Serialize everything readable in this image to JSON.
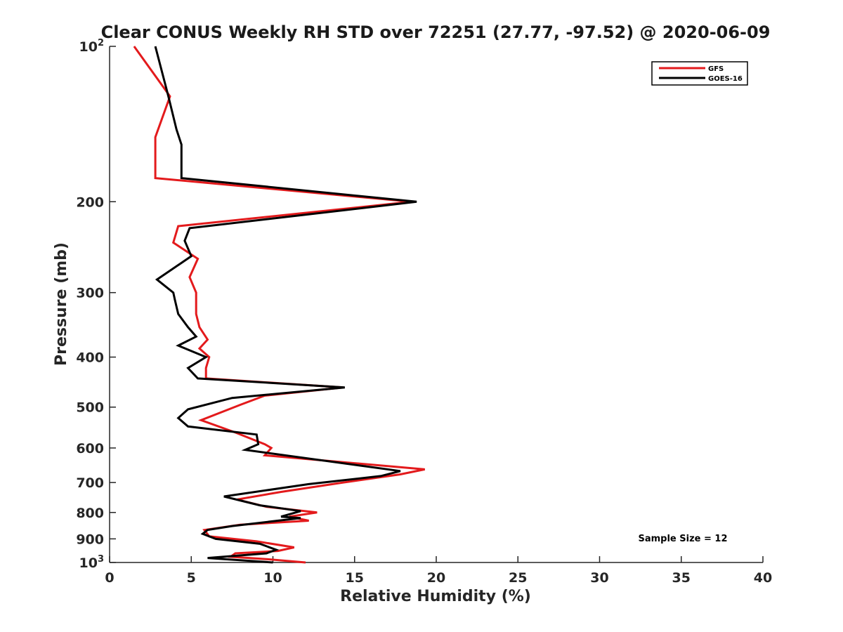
{
  "chart_data": {
    "type": "line",
    "title": "Clear CONUS Weekly RH STD over 72251 (27.77, -97.52) @ 2020-06-09",
    "xlabel": "Relative Humidity (%)",
    "ylabel": "Pressure (mb)",
    "xlim": [
      0,
      40
    ],
    "ylim": [
      100,
      1000
    ],
    "yscale": "log",
    "y_reversed": true,
    "grid": false,
    "legend_position": "top-right",
    "x_ticks": [
      "0",
      "5",
      "10",
      "15",
      "20",
      "25",
      "30",
      "35",
      "40"
    ],
    "y_ticks": [
      {
        "value": 100,
        "base": "10",
        "exp": "2"
      },
      {
        "value": 200,
        "label": "200"
      },
      {
        "value": 300,
        "label": "300"
      },
      {
        "value": 400,
        "label": "400"
      },
      {
        "value": 500,
        "label": "500"
      },
      {
        "value": 600,
        "label": "600"
      },
      {
        "value": 700,
        "label": "700"
      },
      {
        "value": 800,
        "label": "800"
      },
      {
        "value": 900,
        "label": "900"
      },
      {
        "value": 1000,
        "base": "10",
        "exp": "3"
      }
    ],
    "annotation": "Sample Size = 12",
    "series": [
      {
        "name": "GFS",
        "color": "#e31a1c",
        "points": [
          [
            1.5,
            100
          ],
          [
            3.7,
            125
          ],
          [
            2.8,
            150
          ],
          [
            2.8,
            180
          ],
          [
            18.5,
            200
          ],
          [
            4.2,
            223
          ],
          [
            3.9,
            240
          ],
          [
            5.4,
            258
          ],
          [
            4.9,
            280
          ],
          [
            5.3,
            300
          ],
          [
            5.3,
            330
          ],
          [
            5.5,
            350
          ],
          [
            6.0,
            370
          ],
          [
            5.5,
            385
          ],
          [
            6.1,
            400
          ],
          [
            5.9,
            420
          ],
          [
            5.9,
            440
          ],
          [
            14.3,
            458
          ],
          [
            9.5,
            475
          ],
          [
            8.0,
            495
          ],
          [
            5.6,
            530
          ],
          [
            7.7,
            560
          ],
          [
            9.5,
            590
          ],
          [
            9.9,
            600
          ],
          [
            9.5,
            620
          ],
          [
            19.3,
            660
          ],
          [
            17.8,
            675
          ],
          [
            14.3,
            700
          ],
          [
            10.5,
            730
          ],
          [
            7.8,
            755
          ],
          [
            9.6,
            780
          ],
          [
            12.7,
            800
          ],
          [
            11.0,
            815
          ],
          [
            12.2,
            830
          ],
          [
            8.0,
            845
          ],
          [
            5.8,
            865
          ],
          [
            6.1,
            890
          ],
          [
            9.0,
            910
          ],
          [
            11.3,
            935
          ],
          [
            10.3,
            950
          ],
          [
            7.7,
            960
          ],
          [
            7.4,
            975
          ],
          [
            9.6,
            985
          ],
          [
            12.0,
            1000
          ]
        ]
      },
      {
        "name": "GOES-16",
        "color": "#000000",
        "points": [
          [
            2.8,
            100
          ],
          [
            3.6,
            125
          ],
          [
            4.1,
            145
          ],
          [
            4.4,
            155
          ],
          [
            4.4,
            180
          ],
          [
            18.8,
            200
          ],
          [
            4.9,
            225
          ],
          [
            4.6,
            238
          ],
          [
            5.0,
            255
          ],
          [
            2.9,
            283
          ],
          [
            3.9,
            300
          ],
          [
            4.0,
            310
          ],
          [
            4.2,
            330
          ],
          [
            4.8,
            350
          ],
          [
            5.3,
            365
          ],
          [
            4.2,
            380
          ],
          [
            5.9,
            400
          ],
          [
            4.8,
            420
          ],
          [
            5.4,
            440
          ],
          [
            14.4,
            458
          ],
          [
            7.5,
            480
          ],
          [
            4.8,
            505
          ],
          [
            4.2,
            525
          ],
          [
            4.8,
            545
          ],
          [
            9.0,
            565
          ],
          [
            9.1,
            590
          ],
          [
            8.3,
            605
          ],
          [
            17.8,
            665
          ],
          [
            16.6,
            680
          ],
          [
            12.2,
            705
          ],
          [
            7.0,
            745
          ],
          [
            9.2,
            775
          ],
          [
            11.7,
            795
          ],
          [
            10.5,
            815
          ],
          [
            11.7,
            820
          ],
          [
            7.5,
            850
          ],
          [
            6.0,
            865
          ],
          [
            5.7,
            880
          ],
          [
            6.5,
            900
          ],
          [
            9.2,
            920
          ],
          [
            10.2,
            945
          ],
          [
            9.6,
            960
          ],
          [
            6.0,
            980
          ],
          [
            10.0,
            1000
          ]
        ]
      }
    ]
  }
}
